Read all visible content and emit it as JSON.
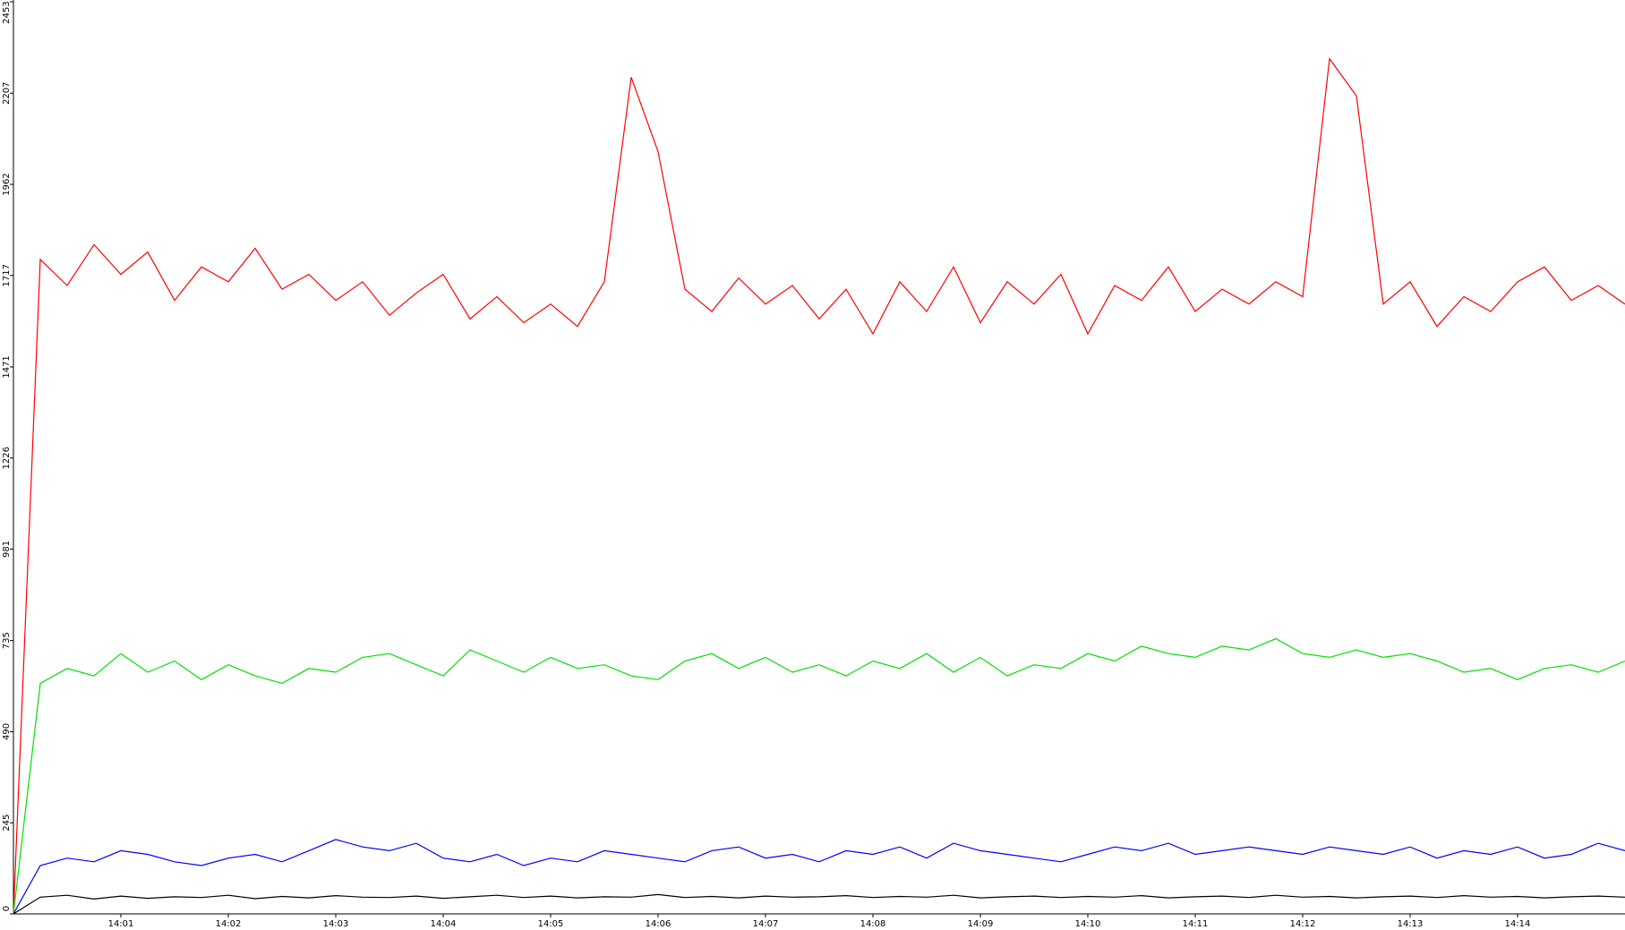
{
  "chart_data": {
    "type": "line",
    "x": [
      0,
      0.25,
      0.5,
      0.75,
      1,
      1.25,
      1.5,
      1.75,
      2,
      2.25,
      2.5,
      2.75,
      3,
      3.25,
      3.5,
      3.75,
      4,
      4.25,
      4.5,
      4.75,
      5,
      5.25,
      5.5,
      5.75,
      6,
      6.25,
      6.5,
      6.75,
      7,
      7.25,
      7.5,
      7.75,
      8,
      8.25,
      8.5,
      8.75,
      9,
      9.25,
      9.5,
      9.75,
      10,
      10.25,
      10.5,
      10.75,
      11,
      11.25,
      11.5,
      11.75,
      12,
      12.25,
      12.5,
      12.75,
      13,
      13.25,
      13.5,
      13.75,
      14,
      14.25,
      14.5,
      14.75,
      15
    ],
    "xlim": [
      0,
      15
    ],
    "xticks": [
      {
        "value": 1,
        "label": "14:01"
      },
      {
        "value": 2,
        "label": "14:02"
      },
      {
        "value": 3,
        "label": "14:03"
      },
      {
        "value": 4,
        "label": "14:04"
      },
      {
        "value": 5,
        "label": "14:05"
      },
      {
        "value": 6,
        "label": "14:06"
      },
      {
        "value": 7,
        "label": "14:07"
      },
      {
        "value": 8,
        "label": "14:08"
      },
      {
        "value": 9,
        "label": "14:09"
      },
      {
        "value": 10,
        "label": "14:10"
      },
      {
        "value": 11,
        "label": "14:11"
      },
      {
        "value": 12,
        "label": "14:12"
      },
      {
        "value": 13,
        "label": "14:13"
      },
      {
        "value": 14,
        "label": "14:14"
      }
    ],
    "ylim": [
      0,
      2453
    ],
    "yticks": [
      0,
      245,
      490,
      735,
      981,
      1226,
      1471,
      1717,
      1962,
      2207,
      2453
    ],
    "series": [
      {
        "color": "#ff0000",
        "values": [
          0,
          1760,
          1690,
          1800,
          1720,
          1780,
          1650,
          1740,
          1700,
          1790,
          1680,
          1720,
          1650,
          1700,
          1610,
          1670,
          1720,
          1600,
          1660,
          1590,
          1640,
          1580,
          1700,
          2250,
          2050,
          1680,
          1620,
          1710,
          1640,
          1690,
          1600,
          1680,
          1560,
          1700,
          1620,
          1740,
          1590,
          1700,
          1640,
          1720,
          1560,
          1690,
          1650,
          1740,
          1620,
          1680,
          1640,
          1700,
          1660,
          2300,
          2200,
          1640,
          1700,
          1580,
          1660,
          1620,
          1700,
          1740,
          1650,
          1690,
          1640
        ]
      },
      {
        "color": "#00e000",
        "values": [
          0,
          620,
          660,
          640,
          700,
          650,
          680,
          630,
          670,
          640,
          620,
          660,
          650,
          690,
          700,
          670,
          640,
          710,
          680,
          650,
          690,
          660,
          670,
          640,
          630,
          680,
          700,
          660,
          690,
          650,
          670,
          640,
          680,
          660,
          700,
          650,
          690,
          640,
          670,
          660,
          700,
          680,
          720,
          700,
          690,
          720,
          710,
          740,
          700,
          690,
          710,
          690,
          700,
          680,
          650,
          660,
          630,
          660,
          670,
          650,
          680
        ]
      },
      {
        "color": "#0000ff",
        "values": [
          0,
          130,
          150,
          140,
          170,
          160,
          140,
          130,
          150,
          160,
          140,
          170,
          200,
          180,
          170,
          190,
          150,
          140,
          160,
          130,
          150,
          140,
          170,
          160,
          150,
          140,
          170,
          180,
          150,
          160,
          140,
          170,
          160,
          180,
          150,
          190,
          170,
          160,
          150,
          140,
          160,
          180,
          170,
          190,
          160,
          170,
          180,
          170,
          160,
          180,
          170,
          160,
          180,
          150,
          170,
          160,
          180,
          150,
          160,
          190,
          170
        ]
      },
      {
        "color": "#000000",
        "values": [
          0,
          45,
          50,
          40,
          48,
          42,
          46,
          44,
          50,
          41,
          47,
          43,
          49,
          45,
          44,
          48,
          42,
          46,
          50,
          44,
          48,
          43,
          46,
          45,
          52,
          44,
          47,
          43,
          48,
          45,
          46,
          49,
          44,
          47,
          45,
          50,
          43,
          46,
          48,
          44,
          47,
          45,
          49,
          43,
          46,
          48,
          44,
          50,
          45,
          47,
          43,
          46,
          48,
          44,
          49,
          45,
          47,
          43,
          46,
          48,
          45
        ]
      }
    ]
  }
}
